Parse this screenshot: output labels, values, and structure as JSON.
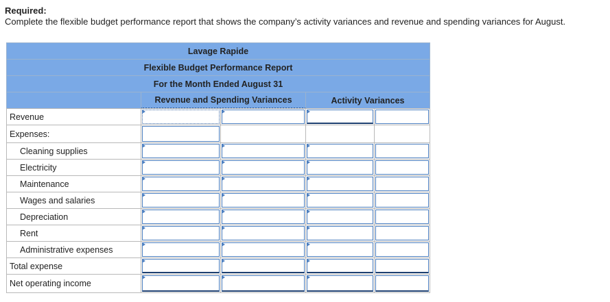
{
  "header": {
    "required": "Required:",
    "instruction": "Complete the flexible budget performance report that shows the company’s activity variances and revenue and spending variances for August."
  },
  "table": {
    "title_lines": [
      "Lavage Rapide",
      "Flexible Budget Performance Report",
      "For the Month Ended August 31"
    ],
    "column_headers": [
      "Revenue and Spending Variances",
      "Activity Variances"
    ],
    "rows": [
      "Revenue",
      "Expenses:",
      "Cleaning supplies",
      "Electricity",
      "Maintenance",
      "Wages and salaries",
      "Depreciation",
      "Rent",
      "Administrative expenses",
      "Total expense",
      "Net operating income"
    ]
  }
}
